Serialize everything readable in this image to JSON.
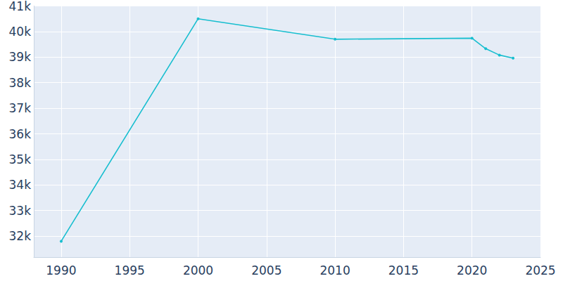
{
  "chart_data": {
    "type": "line",
    "x": [
      1990,
      2000,
      2010,
      2020,
      2021,
      2022,
      2023
    ],
    "values": [
      31800,
      40500,
      39700,
      39740,
      39330,
      39080,
      38960
    ],
    "color": "#17becf",
    "marker": "circle",
    "xlim": [
      1988,
      2025
    ],
    "xticks": [
      1990,
      1995,
      2000,
      2005,
      2010,
      2015,
      2020,
      2025
    ],
    "ylim": [
      31180,
      41000
    ],
    "yticks": [
      {
        "value": 32000,
        "label": "32k"
      },
      {
        "value": 33000,
        "label": "33k"
      },
      {
        "value": 34000,
        "label": "34k"
      },
      {
        "value": 35000,
        "label": "35k"
      },
      {
        "value": 36000,
        "label": "36k"
      },
      {
        "value": 37000,
        "label": "37k"
      },
      {
        "value": 38000,
        "label": "38k"
      },
      {
        "value": 39000,
        "label": "39k"
      },
      {
        "value": 40000,
        "label": "40k"
      },
      {
        "value": 41000,
        "label": "41k"
      }
    ],
    "grid": true
  }
}
